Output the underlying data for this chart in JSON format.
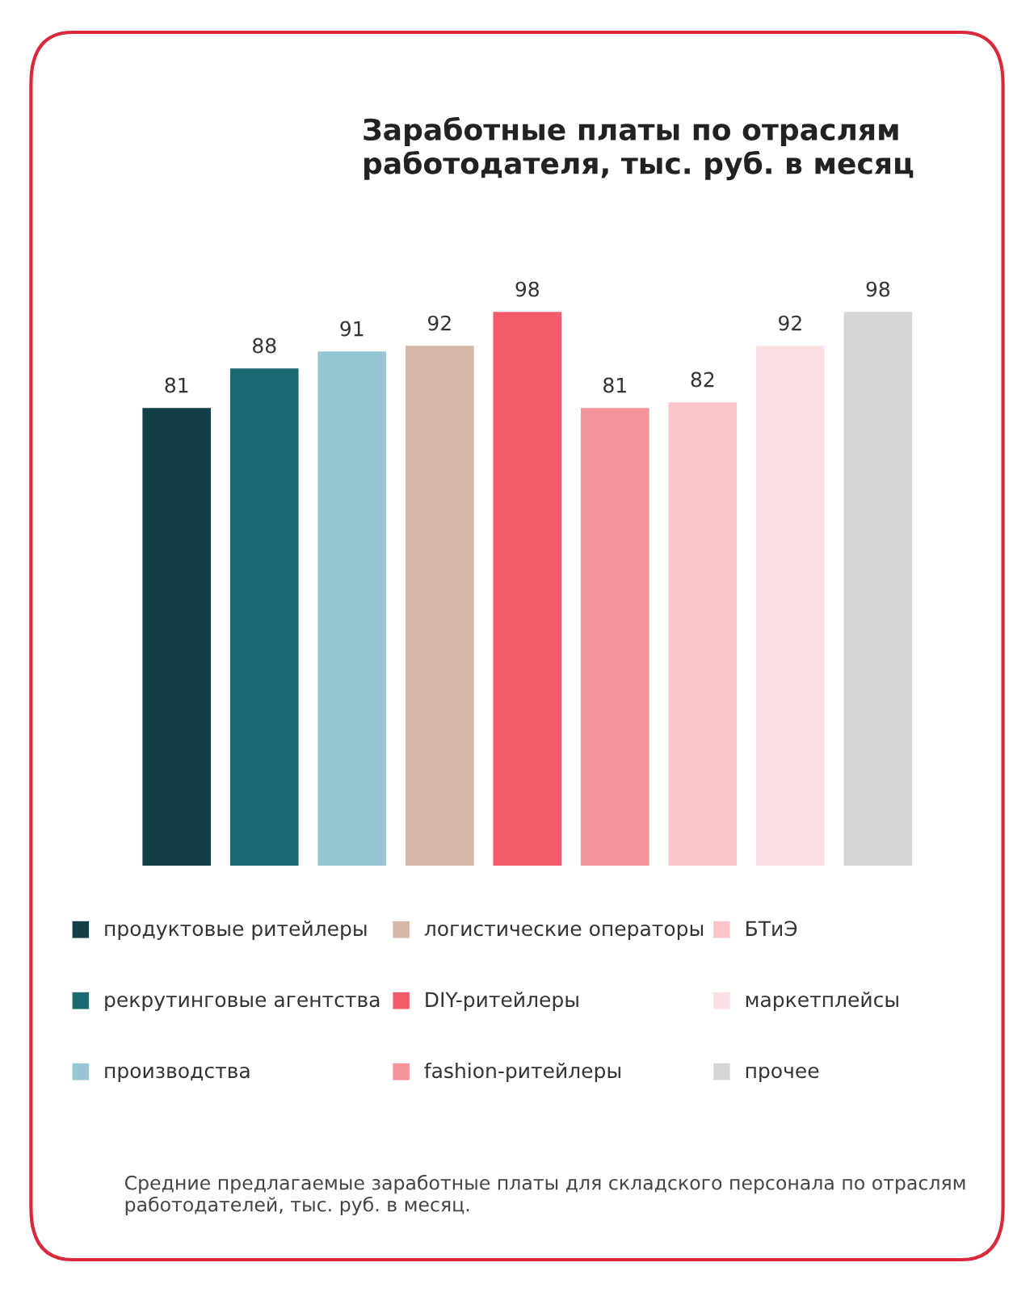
{
  "chart_data": {
    "type": "bar",
    "title": "Заработные платы по отраслям работодателя, тыс. руб. в месяц",
    "categories": [
      null,
      null,
      null,
      null,
      null,
      null,
      null,
      null,
      null
    ],
    "values": [
      81,
      88,
      91,
      92,
      98,
      81,
      82,
      92,
      98
    ],
    "colors": [
      "#123f45",
      "#1b6a71",
      "#96c7d3",
      "#d4b7a7",
      "#f25c6a",
      "#f5939a",
      "#f9c4ca",
      "#fde0e3",
      "#d5d6d8"
    ],
    "data_labels": true,
    "tick_labels": false,
    "grid": false,
    "annotations": [
      "продуктовые ритейлеры",
      "рекрутинговые агентства",
      "производства",
      "логистические операторы",
      "DIY-ритейлеры",
      "fashion-ритейлеры",
      "БТиЭ",
      "маркетплейсы",
      "прочее",
      "Средние предлагаемые заработные платы для складского персонала по отраслям работодателей, тыс. руб. в месяц."
    ]
  }
}
